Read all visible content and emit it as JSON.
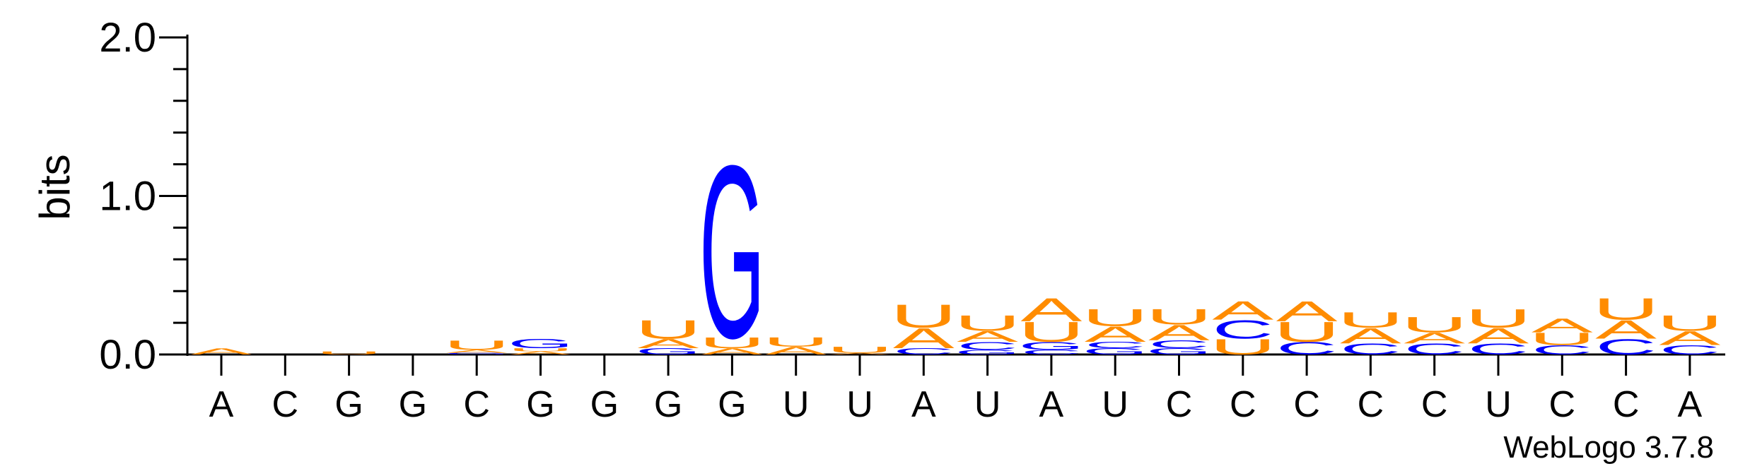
{
  "chart_data": {
    "type": "sequence-logo",
    "ylabel": "bits",
    "ylim": [
      0,
      2
    ],
    "y_ticks": [
      "0.0",
      "1.0",
      "2.0"
    ],
    "consensus": [
      "A",
      "C",
      "G",
      "G",
      "C",
      "G",
      "G",
      "G",
      "G",
      "U",
      "U",
      "A",
      "U",
      "A",
      "U",
      "C",
      "C",
      "C",
      "C",
      "C",
      "U",
      "C",
      "C",
      "A"
    ],
    "positions": [
      {
        "stack": [
          {
            "base": "A",
            "bits": 0.04
          }
        ]
      },
      {
        "stack": []
      },
      {
        "stack": [
          {
            "base": "U",
            "bits": 0.02
          }
        ]
      },
      {
        "stack": []
      },
      {
        "stack": [
          {
            "base": "G",
            "bits": 0.01
          },
          {
            "base": "A",
            "bits": 0.02
          },
          {
            "base": "U",
            "bits": 0.06
          }
        ]
      },
      {
        "stack": [
          {
            "base": "A",
            "bits": 0.02
          },
          {
            "base": "U",
            "bits": 0.02
          },
          {
            "base": "G",
            "bits": 0.06
          }
        ]
      },
      {
        "stack": []
      },
      {
        "stack": [
          {
            "base": "G",
            "bits": 0.04
          },
          {
            "base": "A",
            "bits": 0.06
          },
          {
            "base": "U",
            "bits": 0.12
          }
        ]
      },
      {
        "stack": [
          {
            "base": "A",
            "bits": 0.04
          },
          {
            "base": "U",
            "bits": 0.07
          },
          {
            "base": "G",
            "bits": 1.12
          }
        ]
      },
      {
        "stack": [
          {
            "base": "A",
            "bits": 0.05
          },
          {
            "base": "U",
            "bits": 0.06
          }
        ]
      },
      {
        "stack": [
          {
            "base": "A",
            "bits": 0.01
          },
          {
            "base": "U",
            "bits": 0.04
          }
        ]
      },
      {
        "stack": [
          {
            "base": "C",
            "bits": 0.04
          },
          {
            "base": "A",
            "bits": 0.13
          },
          {
            "base": "U",
            "bits": 0.15
          }
        ]
      },
      {
        "stack": [
          {
            "base": "G",
            "bits": 0.03
          },
          {
            "base": "C",
            "bits": 0.05
          },
          {
            "base": "A",
            "bits": 0.07
          },
          {
            "base": "U",
            "bits": 0.1
          }
        ]
      },
      {
        "stack": [
          {
            "base": "C",
            "bits": 0.03
          },
          {
            "base": "G",
            "bits": 0.05
          },
          {
            "base": "U",
            "bits": 0.13
          },
          {
            "base": "A",
            "bits": 0.15
          }
        ]
      },
      {
        "stack": [
          {
            "base": "G",
            "bits": 0.04
          },
          {
            "base": "C",
            "bits": 0.04
          },
          {
            "base": "A",
            "bits": 0.1
          },
          {
            "base": "U",
            "bits": 0.11
          }
        ]
      },
      {
        "stack": [
          {
            "base": "G",
            "bits": 0.04
          },
          {
            "base": "C",
            "bits": 0.05
          },
          {
            "base": "A",
            "bits": 0.1
          },
          {
            "base": "U",
            "bits": 0.1
          }
        ]
      },
      {
        "stack": [
          {
            "base": "U",
            "bits": 0.1
          },
          {
            "base": "C",
            "bits": 0.12
          },
          {
            "base": "A",
            "bits": 0.12
          }
        ]
      },
      {
        "stack": [
          {
            "base": "C",
            "bits": 0.08
          },
          {
            "base": "U",
            "bits": 0.13
          },
          {
            "base": "A",
            "bits": 0.13
          }
        ]
      },
      {
        "stack": [
          {
            "base": "C",
            "bits": 0.07
          },
          {
            "base": "A",
            "bits": 0.1
          },
          {
            "base": "U",
            "bits": 0.1
          }
        ]
      },
      {
        "stack": [
          {
            "base": "C",
            "bits": 0.07
          },
          {
            "base": "A",
            "bits": 0.07
          },
          {
            "base": "U",
            "bits": 0.1
          }
        ]
      },
      {
        "stack": [
          {
            "base": "C",
            "bits": 0.07
          },
          {
            "base": "A",
            "bits": 0.1
          },
          {
            "base": "U",
            "bits": 0.12
          }
        ]
      },
      {
        "stack": [
          {
            "base": "C",
            "bits": 0.06
          },
          {
            "base": "U",
            "bits": 0.08
          },
          {
            "base": "A",
            "bits": 0.09
          }
        ]
      },
      {
        "stack": [
          {
            "base": "C",
            "bits": 0.1
          },
          {
            "base": "A",
            "bits": 0.12
          },
          {
            "base": "U",
            "bits": 0.14
          }
        ]
      },
      {
        "stack": [
          {
            "base": "C",
            "bits": 0.06
          },
          {
            "base": "A",
            "bits": 0.09
          },
          {
            "base": "U",
            "bits": 0.1
          }
        ]
      }
    ],
    "colors": {
      "A": "#ff8c00",
      "U": "#ff8c00",
      "G": "#0000ff",
      "C": "#0000ff"
    },
    "grid": false
  },
  "footer": {
    "credit": "WebLogo 3.7.8"
  }
}
